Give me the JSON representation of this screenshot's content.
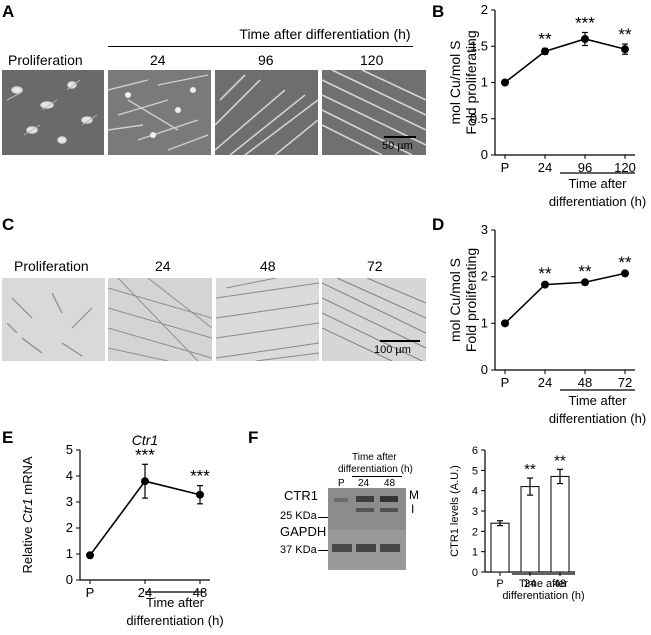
{
  "panels": {
    "A": {
      "letter": "A",
      "header": "Time after differentiation (h)",
      "labels": [
        "Proliferation",
        "24",
        "96",
        "120"
      ],
      "scale_bar": "50 µm"
    },
    "B": {
      "letter": "B"
    },
    "C": {
      "letter": "C",
      "labels": [
        "Proliferation",
        "24",
        "48",
        "72"
      ],
      "scale_bar": "100 µm"
    },
    "D": {
      "letter": "D"
    },
    "E": {
      "letter": "E"
    },
    "F": {
      "letter": "F",
      "blot_header_line1": "Time after",
      "blot_header_line2": "differentiation (h)",
      "lane_labels": [
        "P",
        "24",
        "48"
      ],
      "ctr1_label": "CTR1",
      "ctr1_marker": "25 KDa",
      "gapdh_label": "GAPDH",
      "gapdh_marker": "37 KDa",
      "band_m": "M",
      "band_i": "I"
    }
  },
  "chart_data": [
    {
      "id": "B",
      "type": "line",
      "categories": [
        "P",
        "24",
        "96",
        "120"
      ],
      "values": [
        1.0,
        1.43,
        1.6,
        1.46
      ],
      "errors": [
        0.03,
        0.04,
        0.09,
        0.07
      ],
      "sig": [
        "",
        "**",
        "***",
        "**"
      ],
      "ylabel_lines": [
        "mol Cu/mol S",
        "Fold proliferating"
      ],
      "xlabel_lines": [
        "Time after",
        "differentiation (h)"
      ],
      "ylim": [
        0,
        2
      ],
      "yticks": [
        "0",
        "0.5",
        "1",
        "1.5",
        "2"
      ]
    },
    {
      "id": "D",
      "type": "line",
      "categories": [
        "P",
        "24",
        "48",
        "72"
      ],
      "values": [
        1.0,
        1.83,
        1.88,
        2.07
      ],
      "errors": [
        0.02,
        0.03,
        0.03,
        0.03
      ],
      "sig": [
        "",
        "**",
        "**",
        "**"
      ],
      "ylabel_lines": [
        "mol Cu/mol S",
        "Fold proliferating"
      ],
      "xlabel_lines": [
        "Time after",
        "differentiation (h)"
      ],
      "ylim": [
        0,
        3
      ],
      "yticks": [
        "0",
        "1",
        "2",
        "3"
      ]
    },
    {
      "id": "E",
      "type": "line",
      "categories": [
        "P",
        "24",
        "48"
      ],
      "values": [
        0.95,
        3.8,
        3.28
      ],
      "errors": [
        0.05,
        0.65,
        0.35
      ],
      "sig": [
        "",
        "***",
        "***"
      ],
      "gene": "Ctr1",
      "ylabel_prefix": "Relative ",
      "ylabel_gene": "Ctr1",
      "ylabel_suffix": " mRNA",
      "xlabel_lines": [
        "Time after",
        "differentiation (h)"
      ],
      "ylim": [
        0,
        5
      ],
      "yticks": [
        "0",
        "1",
        "2",
        "3",
        "4",
        "5"
      ]
    },
    {
      "id": "F",
      "type": "bar",
      "categories": [
        "P",
        "24",
        "48"
      ],
      "values": [
        2.4,
        4.2,
        4.7
      ],
      "errors": [
        0.12,
        0.42,
        0.35
      ],
      "sig": [
        "",
        "**",
        "**"
      ],
      "ylabel": "CTR1 levels (A.U.)",
      "xlabel_lines": [
        "Time after",
        "differentiation (h)"
      ],
      "ylim": [
        0,
        6
      ],
      "yticks": [
        "0",
        "1",
        "2",
        "3",
        "4",
        "5",
        "6"
      ]
    }
  ]
}
